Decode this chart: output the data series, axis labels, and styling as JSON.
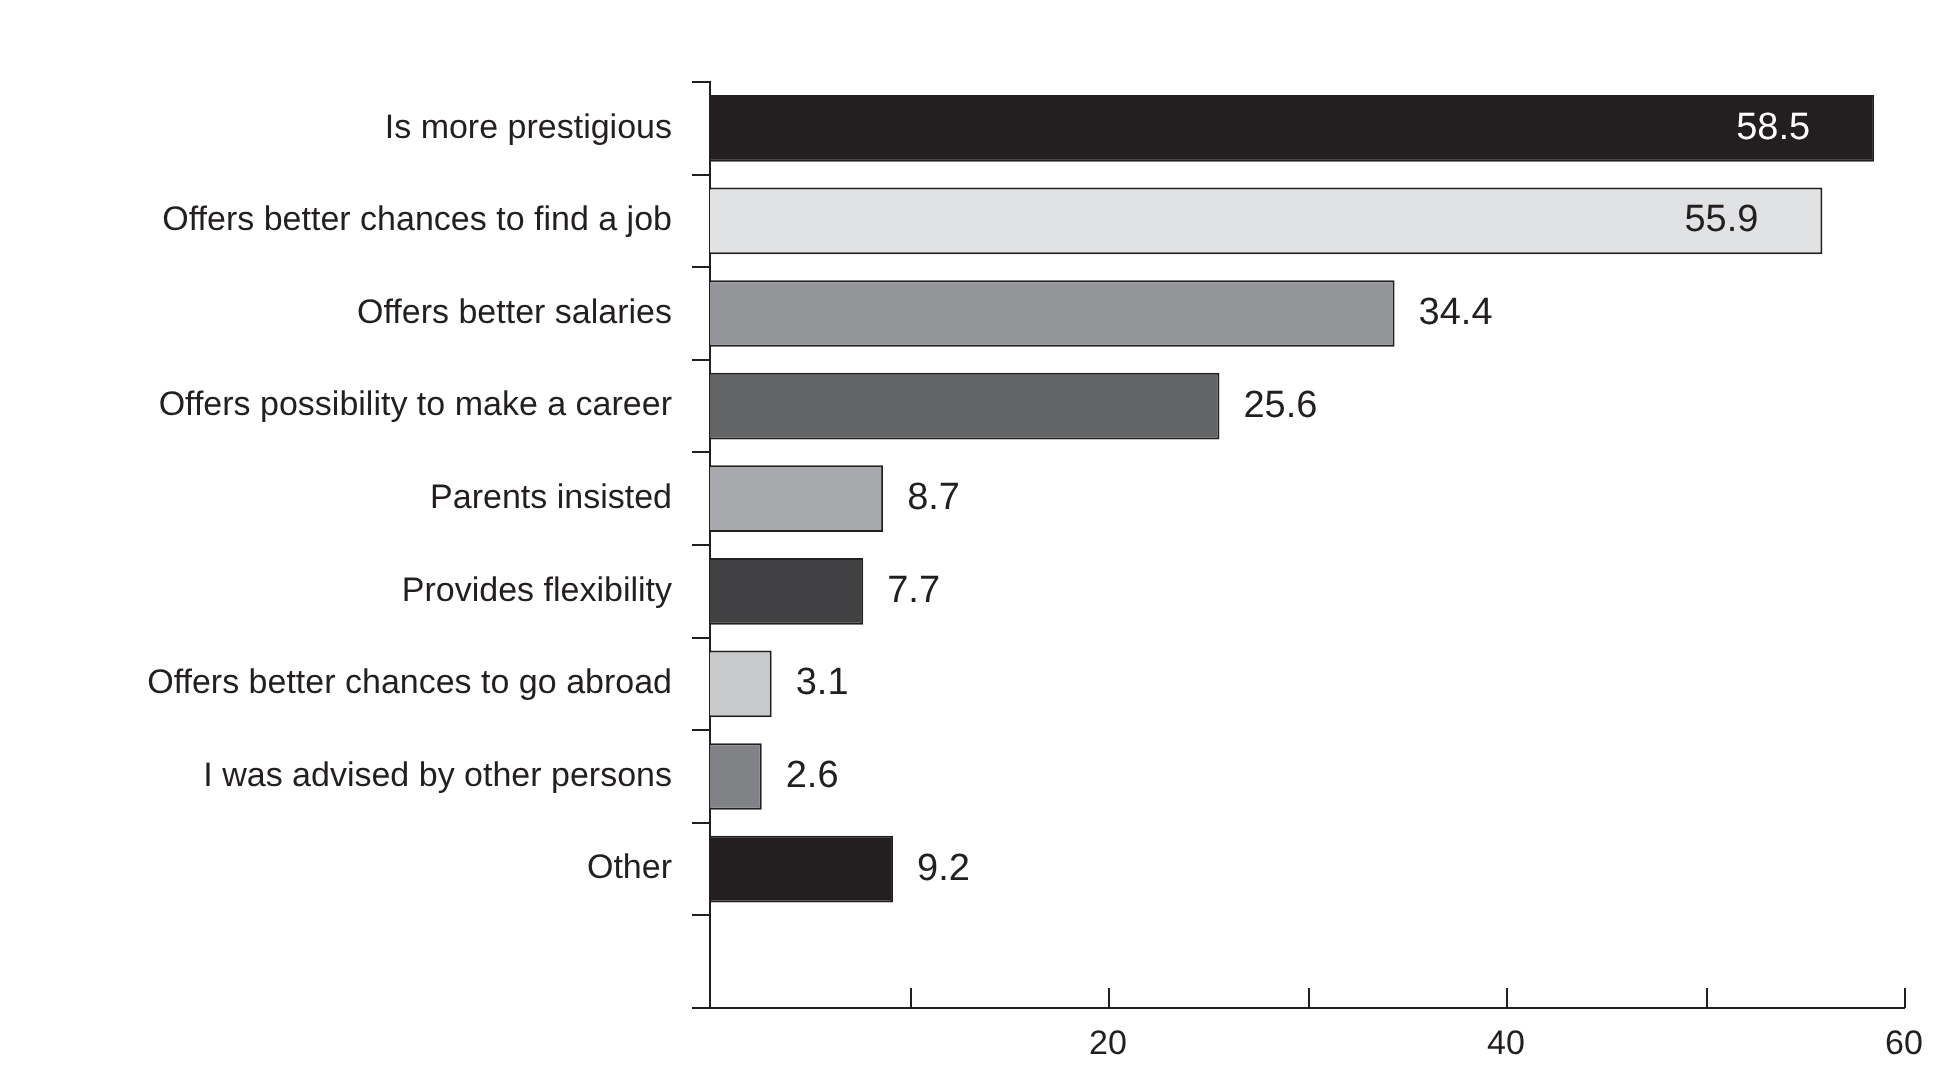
{
  "chart_data": {
    "type": "bar",
    "orientation": "horizontal",
    "categories": [
      "Is more prestigious",
      "Offers better chances to find a job",
      "Offers better salaries",
      "Offers possibility to make a career",
      "Parents insisted",
      "Provides flexibility",
      "Offers better chances to go abroad",
      "I was advised by other persons",
      "Other"
    ],
    "values": [
      58.5,
      55.9,
      34.4,
      25.6,
      8.7,
      7.7,
      3.1,
      2.6,
      9.2
    ],
    "colors": [
      "#231f20",
      "#e1e2e3",
      "#939598",
      "#636466",
      "#a7a9ac",
      "#414042",
      "#c8c9ca",
      "#808285",
      "#231f20"
    ],
    "xlim": [
      0,
      60
    ],
    "xticks": [
      {
        "value": 10,
        "label": null
      },
      20,
      {
        "value": 30,
        "label": null
      },
      40,
      {
        "value": 50,
        "label": null
      },
      60
    ],
    "data_labels": true,
    "grid": false,
    "legend": false
  }
}
